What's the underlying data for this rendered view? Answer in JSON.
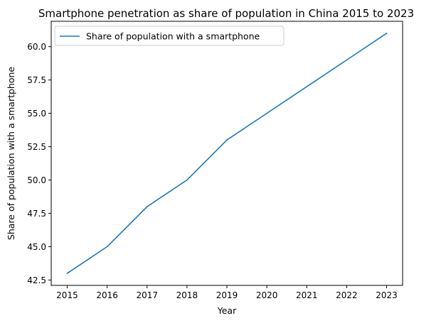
{
  "chart_data": {
    "type": "line",
    "title": "Smartphone penetration as share of population in China 2015 to 2023",
    "xlabel": "Year",
    "ylabel": "Share of population with a smartphone",
    "x": [
      2015,
      2016,
      2017,
      2018,
      2019,
      2020,
      2021,
      2022,
      2023
    ],
    "series": [
      {
        "name": "Share of population with a smartphone",
        "values": [
          43,
          45,
          48,
          50,
          53,
          55,
          57,
          59,
          61
        ],
        "color": "#1f77b4"
      }
    ],
    "xlim": [
      2014.6,
      2023.4
    ],
    "ylim": [
      42.1,
      61.9
    ],
    "x_ticks": [
      "2015",
      "2016",
      "2017",
      "2018",
      "2019",
      "2020",
      "2021",
      "2022",
      "2023"
    ],
    "y_ticks": [
      "42.5",
      "45.0",
      "47.5",
      "50.0",
      "52.5",
      "55.0",
      "57.5",
      "60.0"
    ],
    "grid": false,
    "legend_position": "top-left"
  }
}
